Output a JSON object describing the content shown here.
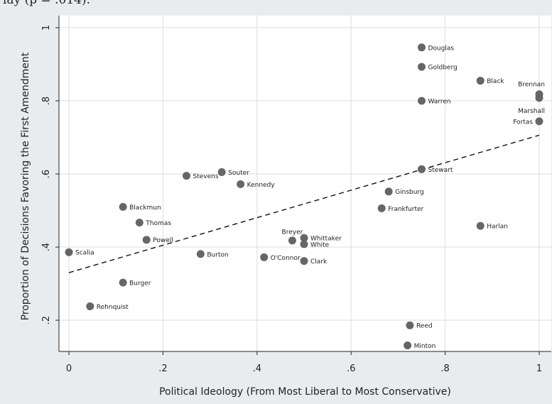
{
  "caption_fragment": "lay (p = .014).",
  "colors": {
    "outer_background": "#e9ecef",
    "plot_background": "#ffffff",
    "grid": "#e3e3e3",
    "point": "#666666",
    "text": "#222222"
  },
  "chart_data": {
    "type": "scatter",
    "xlabel": "Political Ideology (From Most Liberal to Most Conservative)",
    "ylabel": "Proportion of Decisions Favoring the First Amendment",
    "xlim": [
      0,
      1
    ],
    "ylim": [
      0.1,
      1.0
    ],
    "x_ticks": [
      0,
      0.2,
      0.4,
      0.6,
      0.8,
      1
    ],
    "x_tick_labels": [
      "0",
      ".2",
      ".4",
      ".6",
      ".8",
      "1"
    ],
    "y_ticks": [
      0.2,
      0.4,
      0.6,
      0.8,
      1
    ],
    "y_tick_labels": [
      ".2",
      ".4",
      ".6",
      ".8",
      "1"
    ],
    "grid": true,
    "fit_line": {
      "style": "dashed",
      "x": [
        0,
        1
      ],
      "y": [
        0.33,
        0.706
      ]
    },
    "points": [
      {
        "label": "Douglas",
        "x": 0.75,
        "y": 0.946,
        "label_pos": "right"
      },
      {
        "label": "Goldberg",
        "x": 0.75,
        "y": 0.893,
        "label_pos": "right"
      },
      {
        "label": "Black",
        "x": 0.875,
        "y": 0.855,
        "label_pos": "right"
      },
      {
        "label": "Brennan",
        "x": 1.0,
        "y": 0.818,
        "label_pos": "above-left"
      },
      {
        "label": "Marshall",
        "x": 1.0,
        "y": 0.808,
        "label_pos": "below-left"
      },
      {
        "label": "Warren",
        "x": 0.75,
        "y": 0.8,
        "label_pos": "right"
      },
      {
        "label": "Fortas",
        "x": 1.0,
        "y": 0.744,
        "label_pos": "left"
      },
      {
        "label": "Stewart",
        "x": 0.75,
        "y": 0.613,
        "label_pos": "right"
      },
      {
        "label": "Stevens",
        "x": 0.25,
        "y": 0.595,
        "label_pos": "right"
      },
      {
        "label": "Souter",
        "x": 0.325,
        "y": 0.605,
        "label_pos": "right"
      },
      {
        "label": "Kennedy",
        "x": 0.365,
        "y": 0.572,
        "label_pos": "right"
      },
      {
        "label": "Ginsburg",
        "x": 0.68,
        "y": 0.552,
        "label_pos": "right"
      },
      {
        "label": "Blackmun",
        "x": 0.115,
        "y": 0.51,
        "label_pos": "right"
      },
      {
        "label": "Frankfurter",
        "x": 0.665,
        "y": 0.506,
        "label_pos": "right"
      },
      {
        "label": "Thomas",
        "x": 0.15,
        "y": 0.467,
        "label_pos": "right"
      },
      {
        "label": "Harlan",
        "x": 0.875,
        "y": 0.458,
        "label_pos": "right"
      },
      {
        "label": "Whittaker",
        "x": 0.5,
        "y": 0.425,
        "label_pos": "right"
      },
      {
        "label": "Powell",
        "x": 0.165,
        "y": 0.42,
        "label_pos": "right"
      },
      {
        "label": "Breyer",
        "x": 0.475,
        "y": 0.418,
        "label_pos": "above"
      },
      {
        "label": "White",
        "x": 0.5,
        "y": 0.408,
        "label_pos": "right"
      },
      {
        "label": "Scalia",
        "x": 0.0,
        "y": 0.386,
        "label_pos": "right"
      },
      {
        "label": "Burton",
        "x": 0.28,
        "y": 0.381,
        "label_pos": "right"
      },
      {
        "label": "O'Connor",
        "x": 0.415,
        "y": 0.372,
        "label_pos": "right"
      },
      {
        "label": "Clark",
        "x": 0.5,
        "y": 0.362,
        "label_pos": "right"
      },
      {
        "label": "Burger",
        "x": 0.115,
        "y": 0.303,
        "label_pos": "right"
      },
      {
        "label": "Rehnquist",
        "x": 0.045,
        "y": 0.238,
        "label_pos": "right"
      },
      {
        "label": "Reed",
        "x": 0.725,
        "y": 0.186,
        "label_pos": "right"
      },
      {
        "label": "Minton",
        "x": 0.72,
        "y": 0.131,
        "label_pos": "right"
      }
    ]
  }
}
